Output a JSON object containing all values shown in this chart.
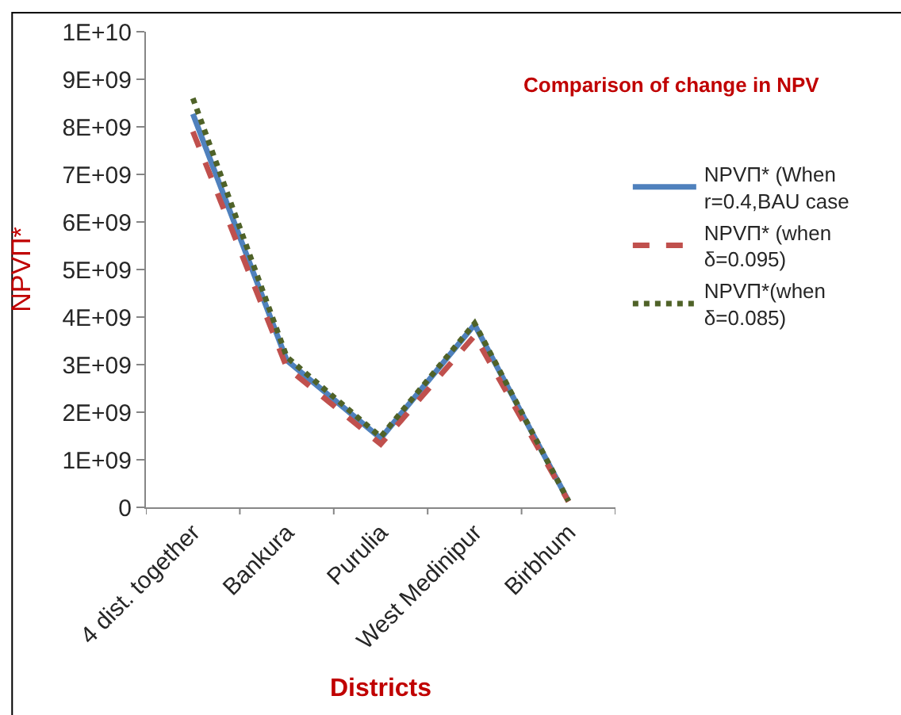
{
  "chart_data": {
    "type": "line",
    "title": "Comparison of change in NPV",
    "xlabel": "Districts",
    "ylabel": "NPVΠ*",
    "categories": [
      "4 dist. together",
      "Bankura",
      "Purulia",
      "West Medinipur",
      "Birbhum"
    ],
    "series": [
      {
        "name": "NPVΠ* (When r=0.4,BAU case",
        "color": "#4f81bd",
        "line_style": "solid",
        "values": [
          8270000000.0,
          3090000000.0,
          1450000000.0,
          3840000000.0,
          130000000.0
        ]
      },
      {
        "name": "NPVΠ* (when δ=0.095)",
        "color": "#c0504d",
        "line_style": "dashed",
        "values": [
          7900000000.0,
          2940000000.0,
          1330000000.0,
          3610000000.0,
          120000000.0
        ]
      },
      {
        "name": "NPVΠ*(when δ=0.085)",
        "color": "#4f6228",
        "line_style": "dotted",
        "values": [
          8600000000.0,
          3160000000.0,
          1480000000.0,
          3870000000.0,
          130000000.0
        ]
      }
    ],
    "ylim": [
      0,
      10000000000.0
    ],
    "yticks": [
      0,
      {
        "value": 1000000000.0,
        "label": "1E+09"
      },
      {
        "value": 2000000000.0,
        "label": "2E+09"
      },
      {
        "value": 3000000000.0,
        "label": "3E+09"
      },
      {
        "value": 4000000000.0,
        "label": "4E+09"
      },
      {
        "value": 5000000000.0,
        "label": "5E+09"
      },
      {
        "value": 6000000000.0,
        "label": "6E+09"
      },
      {
        "value": 7000000000.0,
        "label": "7E+09"
      },
      {
        "value": 8000000000.0,
        "label": "8E+09"
      },
      {
        "value": 9000000000.0,
        "label": "9E+09"
      },
      {
        "value": 10000000000.0,
        "label": "1E+10"
      }
    ],
    "legend": "right",
    "marker": "none"
  }
}
